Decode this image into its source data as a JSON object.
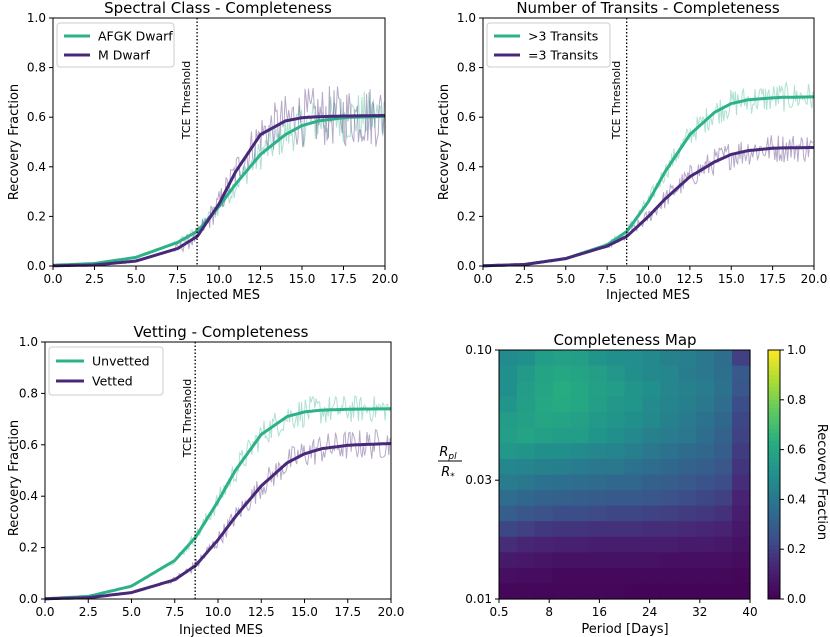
{
  "chart_data": [
    {
      "type": "line",
      "title": "Spectral Class - Completeness",
      "xlabel": "Injected MES",
      "ylabel": "Recovery Fraction",
      "xlim": [
        0.0,
        20.0
      ],
      "ylim": [
        0.0,
        1.0
      ],
      "xticks": [
        "0.0",
        "2.5",
        "5.0",
        "7.5",
        "10.0",
        "12.5",
        "15.0",
        "17.5",
        "20.0"
      ],
      "yticks": [
        "0.0",
        "0.2",
        "0.4",
        "0.6",
        "0.8",
        "1.0"
      ],
      "threshold": {
        "x": 8.68,
        "label": "TCE Threshold"
      },
      "legend_location": "upper-left",
      "series": [
        {
          "name": "AFGK Dwarf",
          "color": "#2db189",
          "x": [
            0,
            2.5,
            5,
            7.5,
            8.7,
            10,
            11,
            12.5,
            14,
            15,
            16,
            17.5,
            18,
            20
          ],
          "y": [
            0.003,
            0.01,
            0.035,
            0.095,
            0.14,
            0.24,
            0.33,
            0.45,
            0.53,
            0.566,
            0.585,
            0.598,
            0.6,
            0.603
          ],
          "noise": [
            0.02,
            0.05,
            0.09,
            0.11
          ]
        },
        {
          "name": "M Dwarf",
          "color": "#482979",
          "x": [
            0,
            2.5,
            5,
            7.5,
            8.7,
            10,
            11,
            12.5,
            14,
            15,
            16,
            17.5,
            18,
            20
          ],
          "y": [
            0.001,
            0.004,
            0.02,
            0.07,
            0.12,
            0.25,
            0.38,
            0.53,
            0.585,
            0.598,
            0.602,
            0.605,
            0.605,
            0.607
          ],
          "noise": [
            0.03,
            0.07,
            0.12,
            0.13
          ]
        }
      ]
    },
    {
      "type": "line",
      "title": "Number of Transits - Completeness",
      "xlabel": "Injected MES",
      "ylabel": "Recovery Fraction",
      "xlim": [
        0.0,
        20.0
      ],
      "ylim": [
        0.0,
        1.0
      ],
      "xticks": [
        "0.0",
        "2.5",
        "5.0",
        "7.5",
        "10.0",
        "12.5",
        "15.0",
        "17.5",
        "20.0"
      ],
      "yticks": [
        "0.0",
        "0.2",
        "0.4",
        "0.6",
        "0.8",
        "1.0"
      ],
      "threshold": {
        "x": 8.68,
        "label": "TCE Threshold"
      },
      "legend_location": "upper-left",
      "series": [
        {
          "name": ">3 Transits",
          "color": "#2db189",
          "x": [
            0,
            2.5,
            5,
            7.5,
            8.7,
            10,
            11,
            12.5,
            14,
            15,
            16,
            17.5,
            18,
            20
          ],
          "y": [
            0.001,
            0.006,
            0.03,
            0.085,
            0.14,
            0.26,
            0.38,
            0.53,
            0.62,
            0.655,
            0.67,
            0.678,
            0.68,
            0.682
          ],
          "noise": [
            0.015,
            0.04,
            0.06,
            0.06
          ]
        },
        {
          "name": "=3 Transits",
          "color": "#482979",
          "x": [
            0,
            2.5,
            5,
            7.5,
            8.7,
            10,
            11,
            12.5,
            14,
            15,
            16,
            17.5,
            18,
            20
          ],
          "y": [
            0.001,
            0.006,
            0.03,
            0.08,
            0.12,
            0.2,
            0.27,
            0.36,
            0.42,
            0.45,
            0.465,
            0.475,
            0.476,
            0.478
          ],
          "noise": [
            0.015,
            0.04,
            0.06,
            0.06
          ]
        }
      ]
    },
    {
      "type": "line",
      "title": "Vetting - Completeness",
      "xlabel": "Injected MES",
      "ylabel": "Recovery Fraction",
      "xlim": [
        0.0,
        20.0
      ],
      "ylim": [
        0.0,
        1.0
      ],
      "xticks": [
        "0.0",
        "2.5",
        "5.0",
        "7.5",
        "10.0",
        "12.5",
        "15.0",
        "17.5",
        "20.0"
      ],
      "yticks": [
        "0.0",
        "0.2",
        "0.4",
        "0.6",
        "0.8",
        "1.0"
      ],
      "threshold": {
        "x": 8.68,
        "label": "TCE Threshold"
      },
      "legend_location": "upper-left",
      "series": [
        {
          "name": "Unvetted",
          "color": "#2db189",
          "x": [
            0,
            2.5,
            5,
            7.5,
            8.7,
            10,
            11,
            12.5,
            14,
            15,
            16,
            17.5,
            18,
            20
          ],
          "y": [
            0.001,
            0.01,
            0.05,
            0.15,
            0.24,
            0.38,
            0.5,
            0.64,
            0.71,
            0.728,
            0.735,
            0.738,
            0.739,
            0.74
          ],
          "noise": [
            0.02,
            0.05,
            0.06,
            0.05
          ]
        },
        {
          "name": "Vetted",
          "color": "#482979",
          "x": [
            0,
            2.5,
            5,
            7.5,
            8.7,
            10,
            11,
            12.5,
            14,
            15,
            16,
            17.5,
            18,
            20
          ],
          "y": [
            0.001,
            0.005,
            0.025,
            0.075,
            0.13,
            0.23,
            0.32,
            0.44,
            0.53,
            0.565,
            0.585,
            0.598,
            0.6,
            0.605
          ],
          "noise": [
            0.02,
            0.04,
            0.06,
            0.06
          ]
        }
      ]
    },
    {
      "type": "heatmap",
      "title": "Completeness Map",
      "xlabel": "Period [Days]",
      "ylabel": "R_pl / R_*",
      "ylabel_main": "R",
      "ylabel_main_sub": "pl",
      "ylabel_den": "R",
      "ylabel_den_sub": "*",
      "xticks": [
        "0.5",
        "8",
        "16",
        "24",
        "32",
        "40"
      ],
      "yticks": [
        "0.10",
        "0.03",
        "0.01"
      ],
      "colorbar_label": "Recovery Fraction",
      "colorbar_ticks": [
        "0.0",
        "0.2",
        "0.4",
        "0.6",
        "0.8",
        "1.0"
      ],
      "colormap": "viridis",
      "values": [
        [
          0.48,
          0.5,
          0.55,
          0.57,
          0.56,
          0.52,
          0.5,
          0.49,
          0.47,
          0.44,
          0.43,
          0.4,
          0.36,
          0.2
        ],
        [
          0.5,
          0.54,
          0.58,
          0.6,
          0.58,
          0.56,
          0.53,
          0.5,
          0.47,
          0.46,
          0.42,
          0.4,
          0.37,
          0.28
        ],
        [
          0.5,
          0.55,
          0.59,
          0.62,
          0.6,
          0.57,
          0.55,
          0.52,
          0.5,
          0.46,
          0.44,
          0.42,
          0.38,
          0.27
        ],
        [
          0.52,
          0.56,
          0.6,
          0.61,
          0.6,
          0.56,
          0.53,
          0.52,
          0.48,
          0.45,
          0.43,
          0.4,
          0.36,
          0.24
        ],
        [
          0.55,
          0.57,
          0.59,
          0.58,
          0.57,
          0.54,
          0.52,
          0.5,
          0.47,
          0.44,
          0.41,
          0.38,
          0.34,
          0.22
        ],
        [
          0.56,
          0.58,
          0.57,
          0.55,
          0.55,
          0.52,
          0.5,
          0.47,
          0.44,
          0.42,
          0.4,
          0.36,
          0.32,
          0.21
        ],
        [
          0.53,
          0.52,
          0.5,
          0.5,
          0.48,
          0.46,
          0.45,
          0.43,
          0.4,
          0.38,
          0.35,
          0.33,
          0.3,
          0.19
        ],
        [
          0.46,
          0.45,
          0.44,
          0.43,
          0.42,
          0.4,
          0.4,
          0.38,
          0.36,
          0.34,
          0.32,
          0.3,
          0.27,
          0.17
        ],
        [
          0.42,
          0.4,
          0.38,
          0.37,
          0.36,
          0.35,
          0.34,
          0.33,
          0.31,
          0.3,
          0.28,
          0.26,
          0.24,
          0.15
        ],
        [
          0.36,
          0.34,
          0.32,
          0.31,
          0.3,
          0.29,
          0.28,
          0.28,
          0.27,
          0.25,
          0.24,
          0.22,
          0.2,
          0.12
        ],
        [
          0.3,
          0.27,
          0.25,
          0.24,
          0.24,
          0.23,
          0.22,
          0.22,
          0.21,
          0.2,
          0.19,
          0.18,
          0.16,
          0.1
        ],
        [
          0.22,
          0.2,
          0.18,
          0.17,
          0.17,
          0.16,
          0.16,
          0.16,
          0.15,
          0.15,
          0.14,
          0.13,
          0.12,
          0.08
        ],
        [
          0.15,
          0.13,
          0.12,
          0.11,
          0.11,
          0.1,
          0.1,
          0.1,
          0.1,
          0.1,
          0.09,
          0.09,
          0.08,
          0.06
        ],
        [
          0.09,
          0.08,
          0.07,
          0.06,
          0.06,
          0.06,
          0.06,
          0.06,
          0.06,
          0.05,
          0.05,
          0.05,
          0.05,
          0.04
        ],
        [
          0.05,
          0.04,
          0.04,
          0.03,
          0.03,
          0.03,
          0.03,
          0.03,
          0.03,
          0.03,
          0.03,
          0.03,
          0.03,
          0.02
        ],
        [
          0.02,
          0.02,
          0.02,
          0.02,
          0.02,
          0.02,
          0.02,
          0.01,
          0.01,
          0.01,
          0.01,
          0.01,
          0.01,
          0.01
        ]
      ]
    }
  ]
}
